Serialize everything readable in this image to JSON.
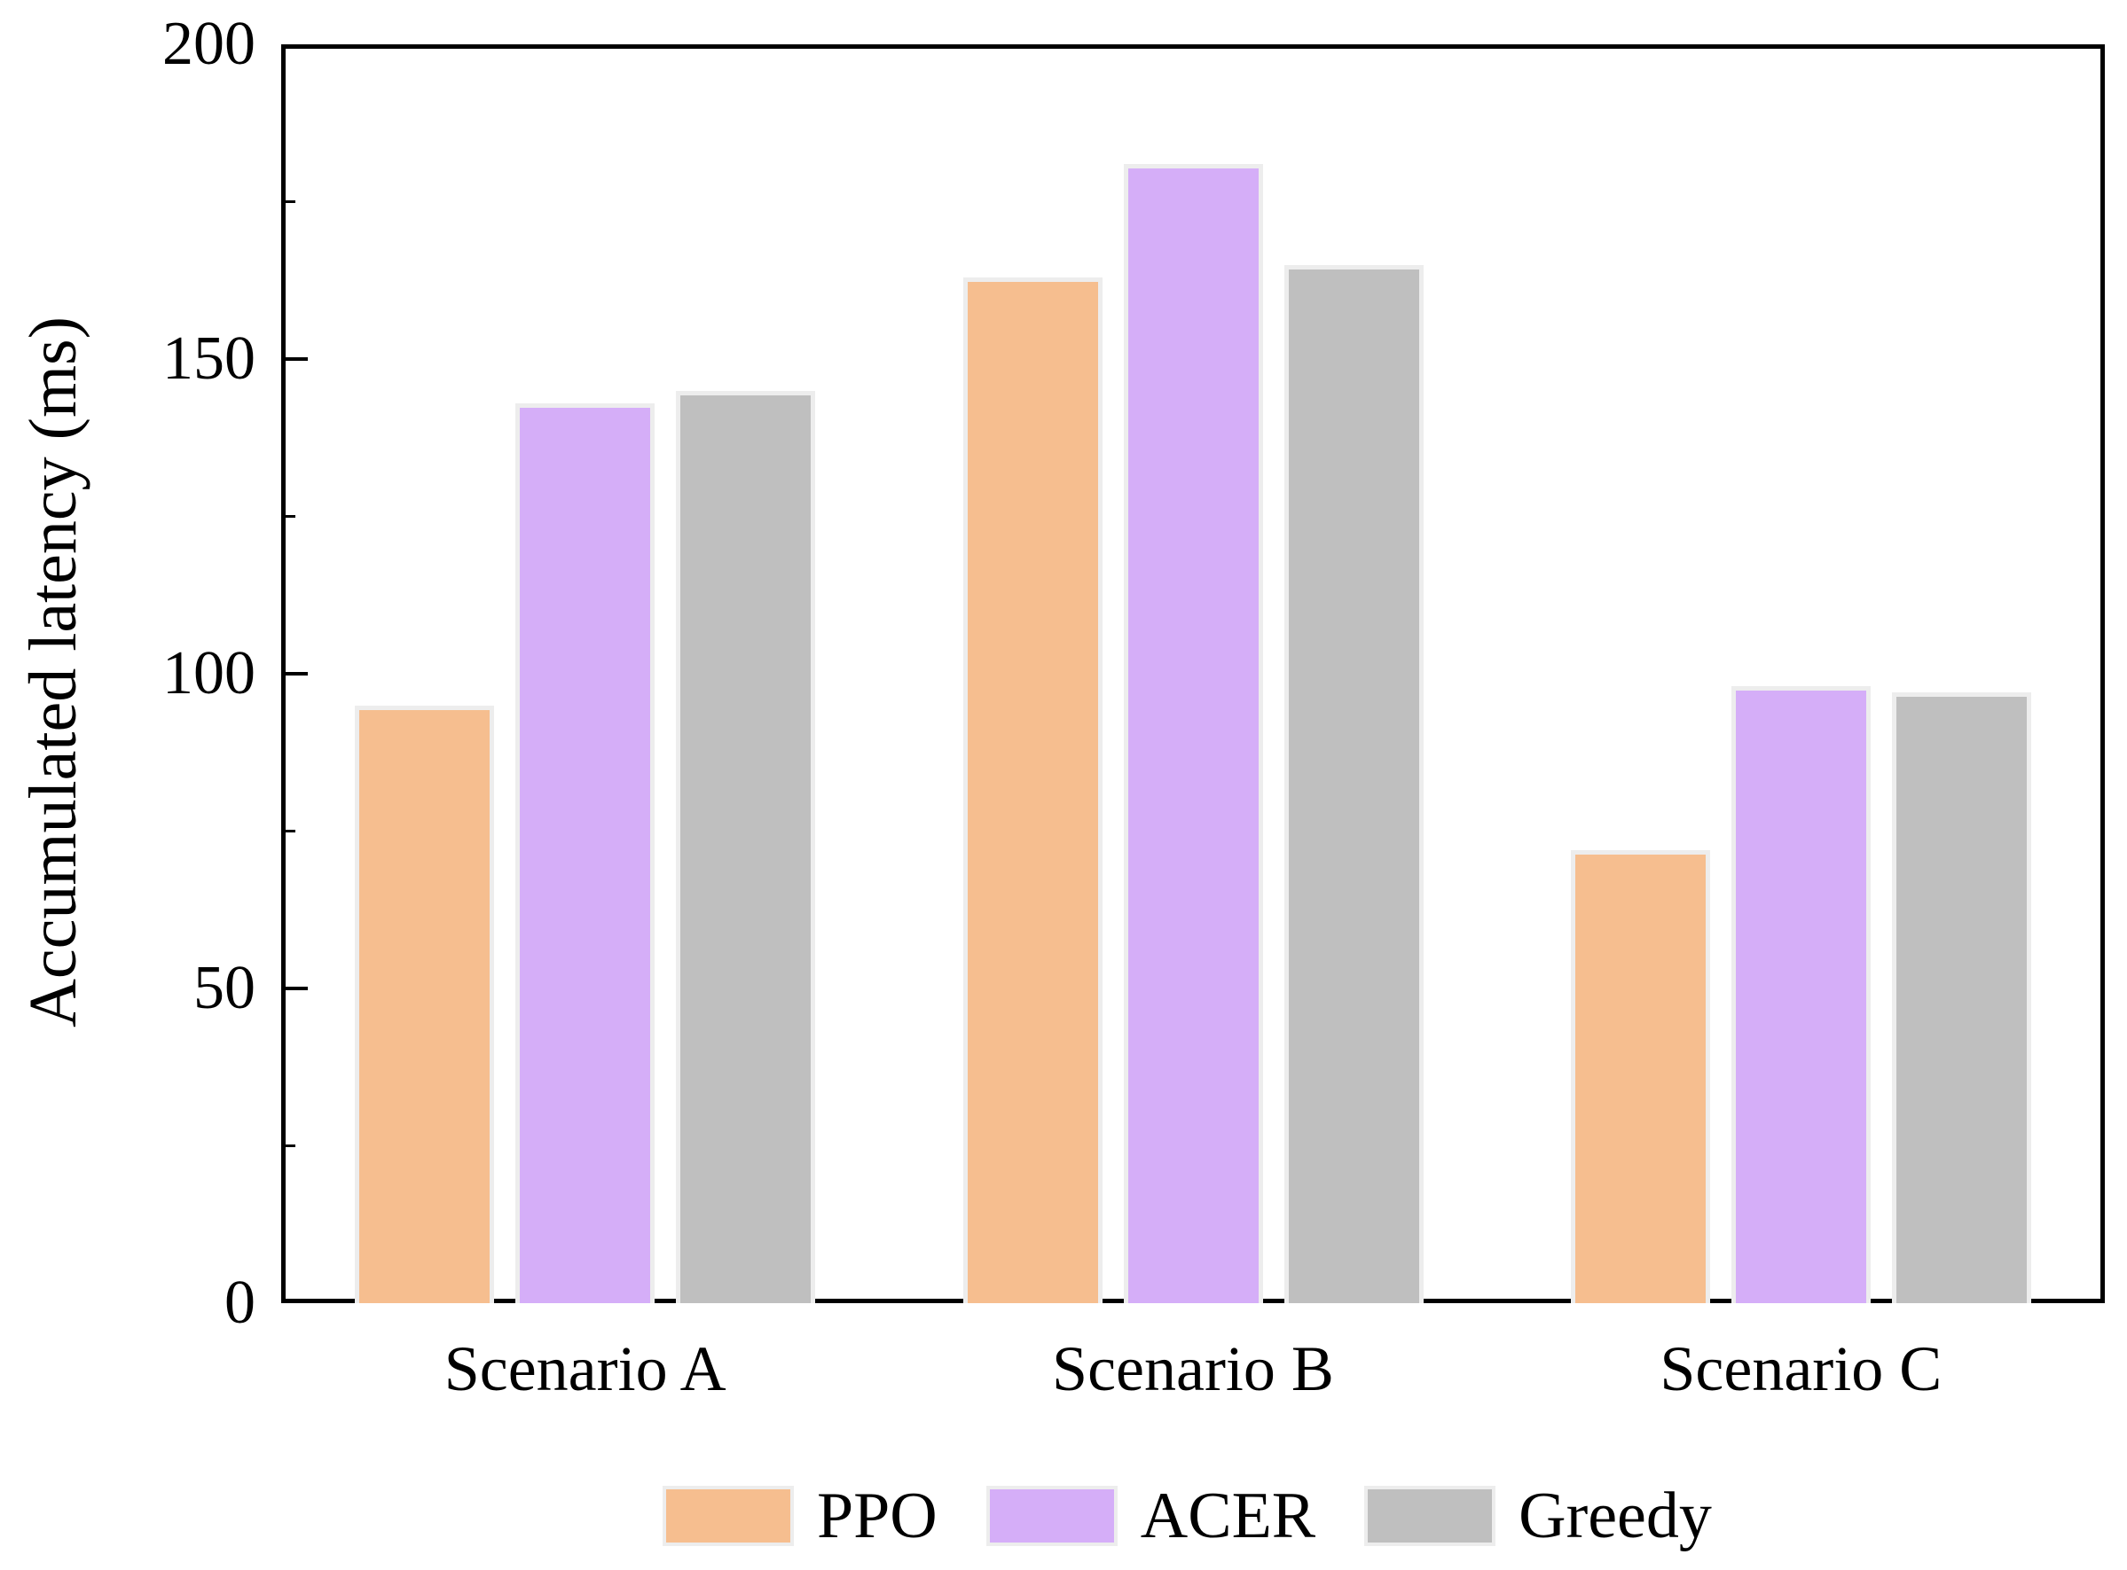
{
  "chart_data": {
    "type": "bar",
    "title": "",
    "categories": [
      "Scenario A",
      "Scenario B",
      "Scenario C"
    ],
    "series": [
      {
        "name": "PPO",
        "color": "#F6BE8F",
        "values": [
          95,
          163,
          72
        ]
      },
      {
        "name": "ACER",
        "color": "#D5AEF8",
        "values": [
          143,
          181,
          98
        ]
      },
      {
        "name": "Greedy",
        "color": "#BFBFBF",
        "values": [
          145,
          165,
          97
        ]
      }
    ],
    "xlabel": "",
    "ylabel": "Accumulated latency (ms)",
    "ylim": [
      0,
      200
    ],
    "yticks_major": [
      0,
      50,
      100,
      150,
      200
    ],
    "ytick_labels": [
      "0",
      "50",
      "100",
      "150",
      "200"
    ],
    "yticks_minor": [
      25,
      75,
      125,
      175
    ],
    "grid": false,
    "legend_position": "bottom",
    "colors": {
      "axis": "#000000",
      "text": "#000000",
      "background": "#ffffff",
      "bar_edge": "#ededed"
    }
  }
}
